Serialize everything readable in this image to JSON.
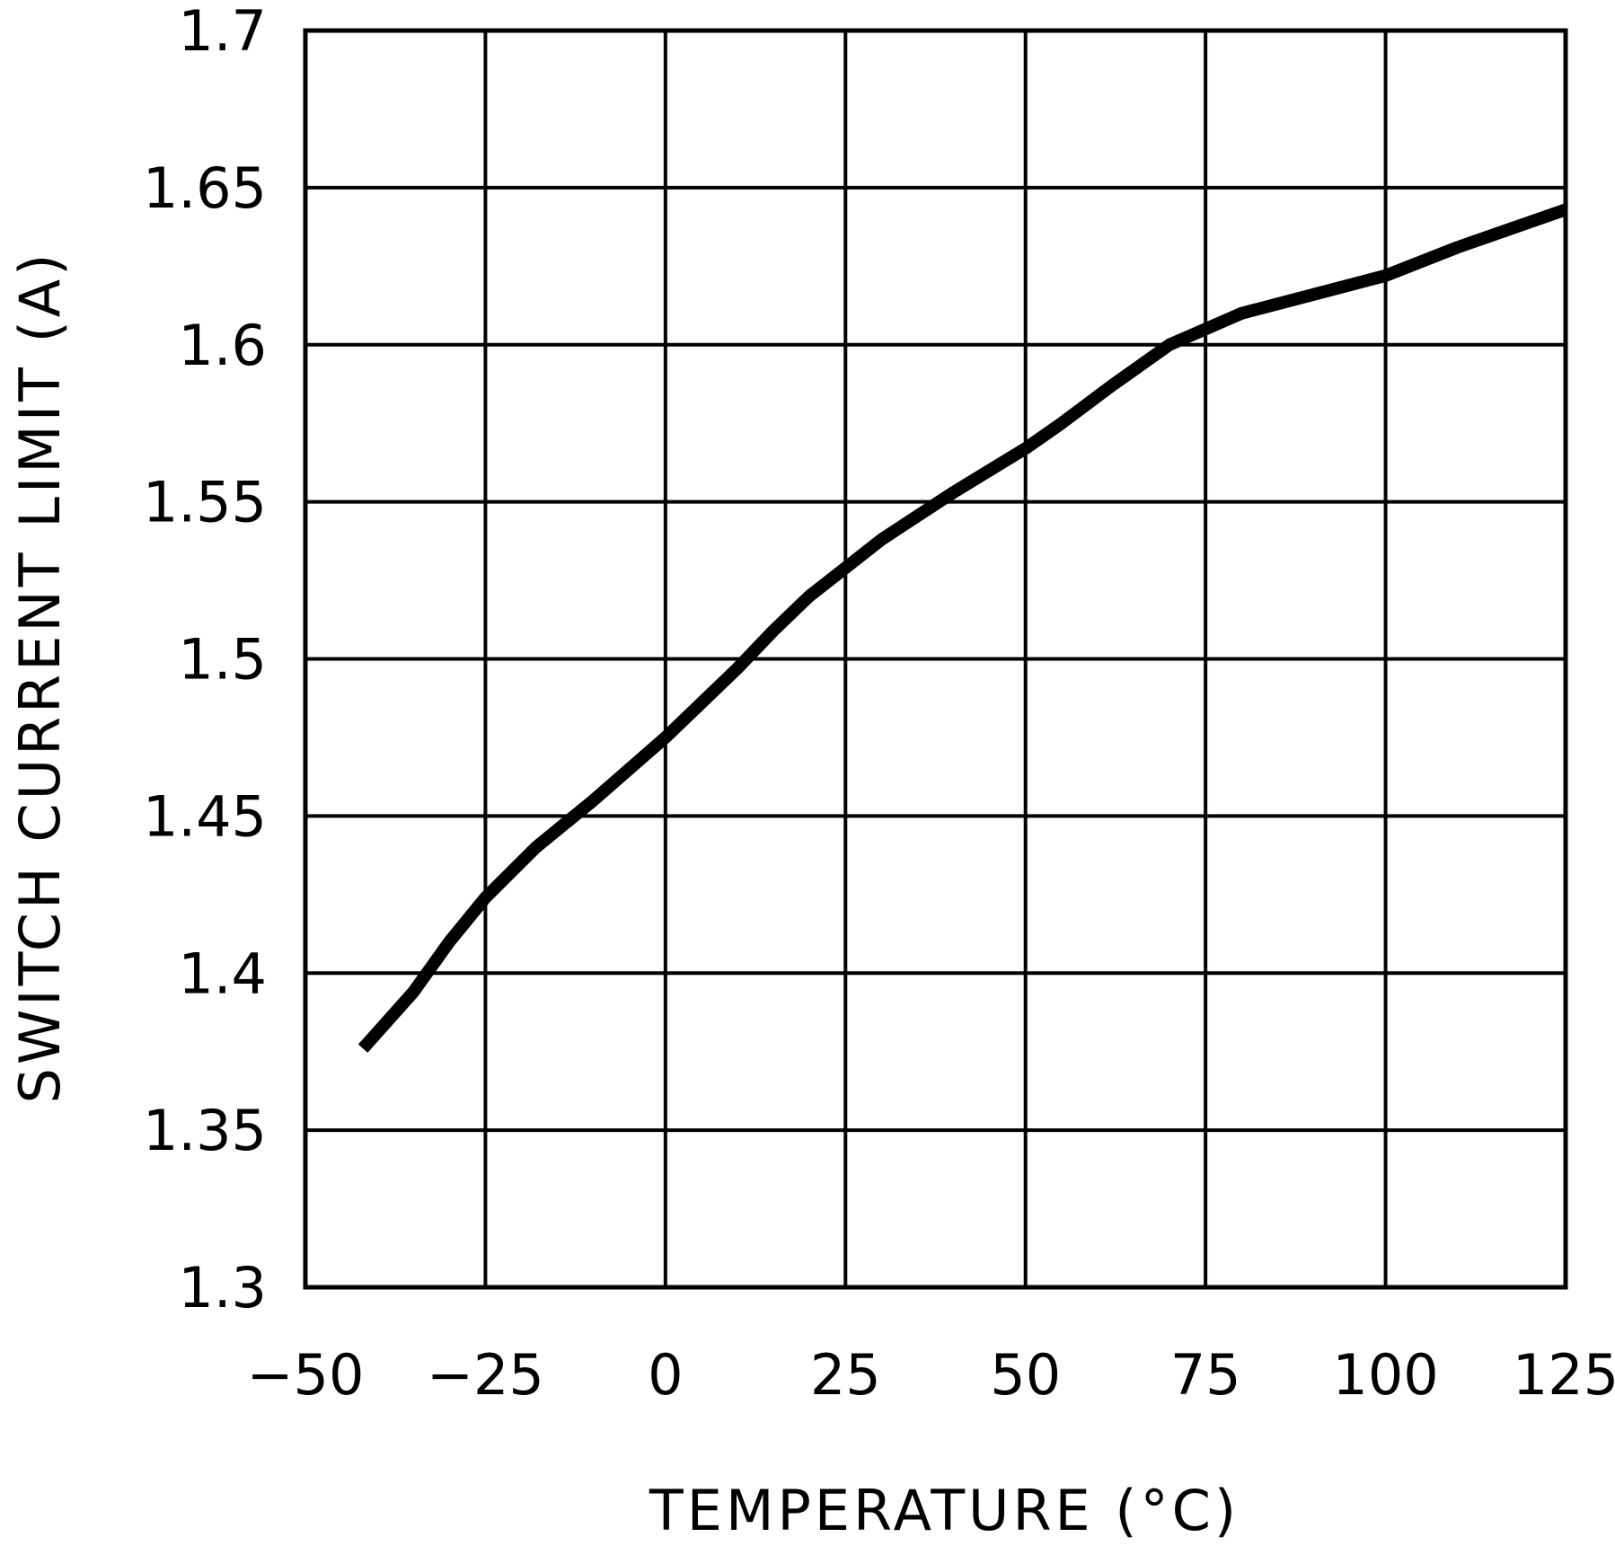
{
  "chart_data": {
    "type": "line",
    "title": "",
    "xlabel": "TEMPERATURE (°C)",
    "ylabel": "SWITCH CURRENT LIMIT (A)",
    "xlim": [
      -50,
      125
    ],
    "ylim": [
      1.3,
      1.7
    ],
    "xticks": [
      -50,
      -25,
      0,
      25,
      50,
      75,
      100,
      125
    ],
    "yticks": [
      1.3,
      1.35,
      1.4,
      1.45,
      1.5,
      1.55,
      1.6,
      1.65,
      1.7
    ],
    "xtick_labels": [
      "−50",
      "−25",
      "0",
      "25",
      "50",
      "75",
      "100",
      "125"
    ],
    "ytick_labels": [
      "1.3",
      "1.35",
      "1.4",
      "1.45",
      "1.5",
      "1.55",
      "1.6",
      "1.65",
      "1.7"
    ],
    "grid": true,
    "series": [
      {
        "x": [
          -42,
          -35,
          -30,
          -25,
          -18,
          -10,
          0,
          10,
          15,
          20,
          25,
          30,
          40,
          50,
          55,
          62,
          70,
          75,
          80,
          85,
          90,
          95,
          100,
          110,
          120,
          125
        ],
        "y": [
          1.376,
          1.394,
          1.41,
          1.424,
          1.44,
          1.455,
          1.475,
          1.497,
          1.509,
          1.52,
          1.529,
          1.538,
          1.553,
          1.567,
          1.575,
          1.587,
          1.6,
          1.605,
          1.61,
          1.613,
          1.616,
          1.619,
          1.622,
          1.631,
          1.639,
          1.643
        ]
      }
    ],
    "colors": {
      "line": "#000000",
      "grid": "#000000",
      "background": "#ffffff"
    }
  }
}
